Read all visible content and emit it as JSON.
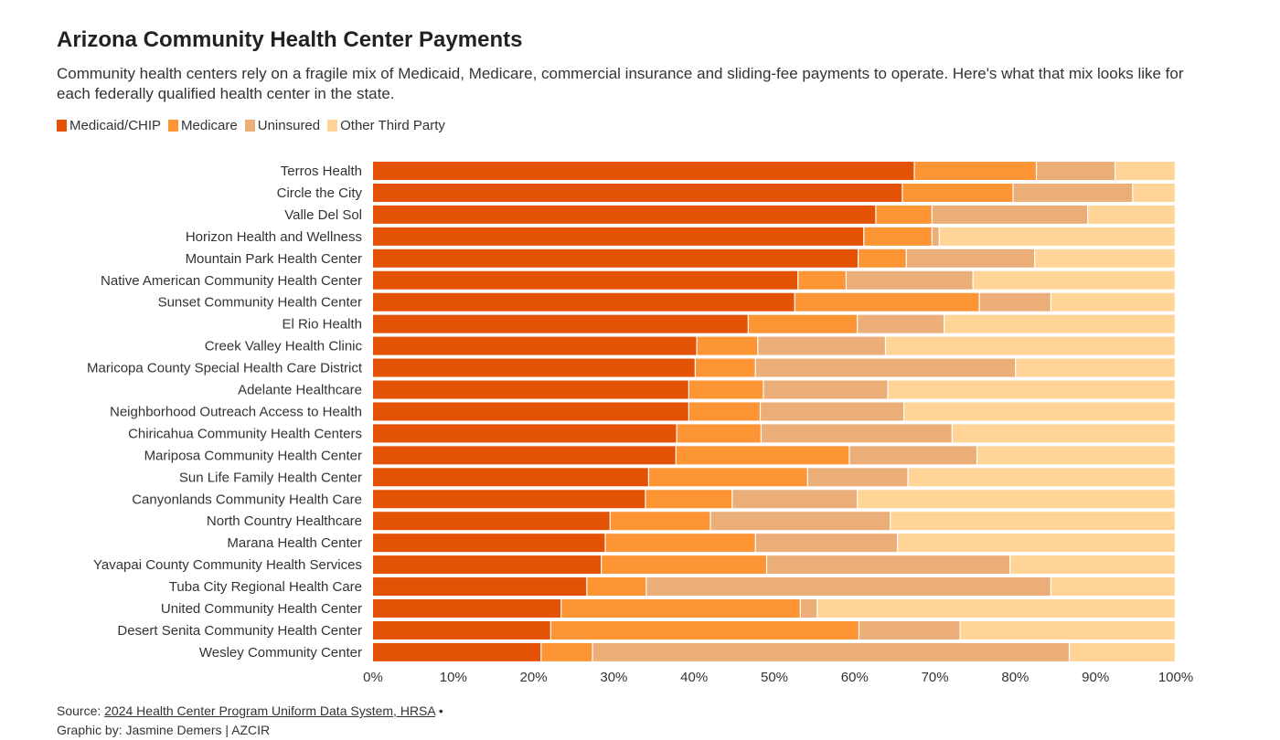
{
  "header": {
    "title": "Arizona Community Health Center Payments",
    "subtitle": "Community health centers rely on a fragile mix of Medicaid, Medicare, commercial insurance and sliding-fee payments to operate. Here's what that mix looks like for each federally qualified health center in the state."
  },
  "footer": {
    "source_prefix": "Source: ",
    "source_link": "2024 Health Center Program Uniform Data System, HRSA",
    "source_suffix": " •",
    "credit": "Graphic by: Jasmine Demers | AZCIR"
  },
  "chart_data": {
    "type": "bar",
    "orientation": "horizontal",
    "stacked": true,
    "legend_position": "top-left",
    "xlim": [
      0,
      100
    ],
    "x_ticks": [
      "0%",
      "10%",
      "20%",
      "30%",
      "40%",
      "50%",
      "60%",
      "70%",
      "80%",
      "90%",
      "100%"
    ],
    "categories": [
      "Terros Health",
      "Circle the City",
      "Valle Del Sol",
      "Horizon Health and Wellness",
      "Mountain Park Health Center",
      "Native American Community Health Center",
      "Sunset Community Health Center",
      "El Rio Health",
      "Creek Valley Health Clinic",
      "Maricopa County Special Health Care District",
      "Adelante Healthcare",
      "Neighborhood Outreach Access to Health",
      "Chiricahua Community Health Centers",
      "Mariposa Community Health Center",
      "Sun Life Family Health Center",
      "Canyonlands Community Health Care",
      "North Country Healthcare",
      "Marana Health Center",
      "Yavapai County Community Health Services",
      "Tuba City Regional Health Care",
      "United Community Health Center",
      "Desert Senita Community Health Center",
      "Wesley Community Center"
    ],
    "series": [
      {
        "name": "Medicaid/CHIP",
        "color": "#e35205",
        "values": [
          67.5,
          66.0,
          62.7,
          61.2,
          60.5,
          53.0,
          52.6,
          46.8,
          40.4,
          40.2,
          39.4,
          39.4,
          37.9,
          37.8,
          34.4,
          34.0,
          29.6,
          29.0,
          28.5,
          26.7,
          23.5,
          22.2,
          21.0
        ]
      },
      {
        "name": "Medicare",
        "color": "#fd9535",
        "values": [
          15.2,
          13.8,
          7.0,
          8.5,
          6.0,
          6.0,
          23.0,
          13.6,
          7.6,
          7.5,
          9.3,
          8.9,
          10.5,
          21.6,
          19.8,
          10.8,
          12.5,
          18.7,
          20.6,
          7.4,
          29.8,
          38.4,
          6.4
        ]
      },
      {
        "name": "Uninsured",
        "color": "#ebae78",
        "values": [
          9.8,
          14.9,
          19.4,
          0.9,
          16.0,
          15.8,
          8.9,
          10.8,
          15.9,
          32.4,
          15.5,
          17.9,
          23.8,
          15.9,
          12.5,
          15.6,
          22.4,
          17.7,
          30.3,
          50.4,
          2.1,
          12.6,
          59.4
        ]
      },
      {
        "name": "Other Third Party",
        "color": "#ffd496",
        "values": [
          7.5,
          5.3,
          10.9,
          29.4,
          17.5,
          25.2,
          15.5,
          28.8,
          36.1,
          19.9,
          35.8,
          33.8,
          27.8,
          24.7,
          33.3,
          39.6,
          35.5,
          34.6,
          20.6,
          15.5,
          44.6,
          26.8,
          13.2
        ]
      }
    ]
  }
}
